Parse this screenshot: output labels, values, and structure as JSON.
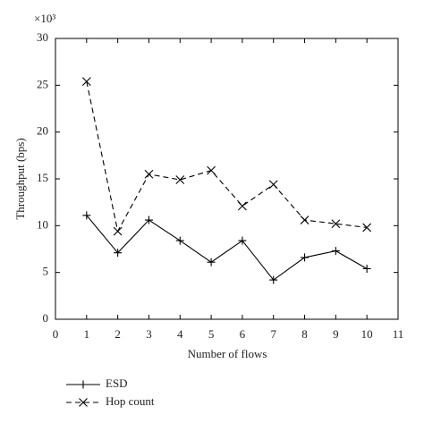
{
  "chart_data": {
    "type": "line",
    "y_multiplier": "×10³",
    "xlabel": "Number of flows",
    "ylabel": "Throughput (bps)",
    "x": [
      1,
      2,
      3,
      4,
      5,
      6,
      7,
      8,
      9,
      10
    ],
    "series": [
      {
        "name": "ESD",
        "color": "#000000",
        "dash": "solid",
        "marker": "plus",
        "values": [
          11.1,
          7.1,
          10.6,
          8.4,
          6.1,
          8.4,
          4.2,
          6.6,
          7.3,
          5.4
        ]
      },
      {
        "name": "Hop count",
        "color": "#000000",
        "dash": "dashed",
        "marker": "cross",
        "values": [
          25.4,
          9.4,
          15.5,
          14.9,
          15.9,
          12.1,
          14.4,
          10.6,
          10.2,
          9.8
        ]
      }
    ],
    "xlim": [
      0,
      11
    ],
    "xticks": [
      0,
      1,
      2,
      3,
      4,
      5,
      6,
      7,
      8,
      9,
      10,
      11
    ],
    "ylim": [
      0,
      30
    ],
    "yticks": [
      0,
      5,
      10,
      15,
      20,
      25,
      30
    ],
    "grid": false,
    "legend": "below-left"
  }
}
